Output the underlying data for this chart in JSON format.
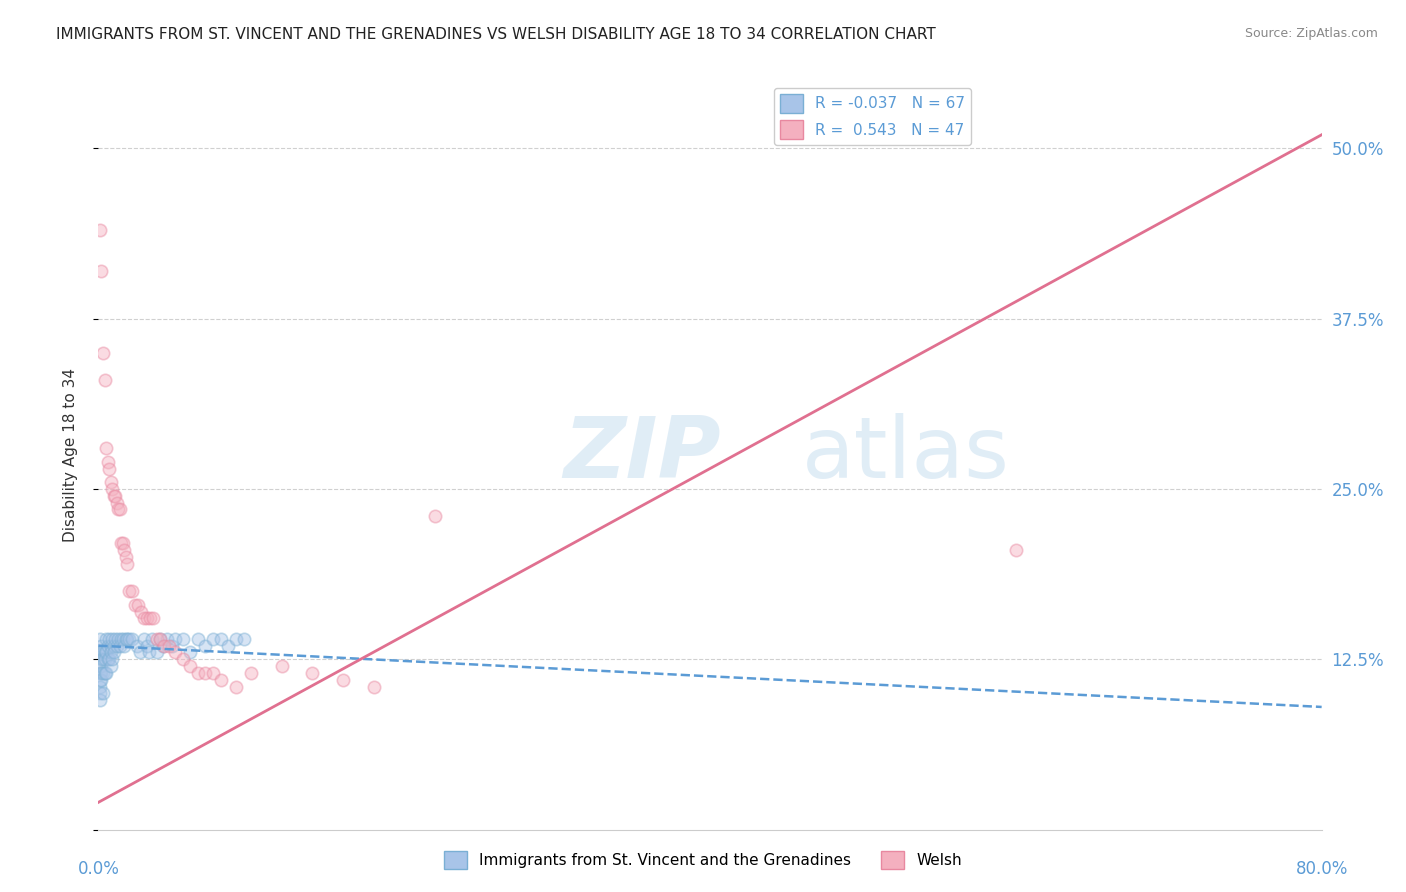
{
  "title": "IMMIGRANTS FROM ST. VINCENT AND THE GRENADINES VS WELSH DISABILITY AGE 18 TO 34 CORRELATION CHART",
  "source": "Source: ZipAtlas.com",
  "ylabel": "Disability Age 18 to 34",
  "ytick_labels": [
    "",
    "12.5%",
    "25.0%",
    "37.5%",
    "50.0%"
  ],
  "ytick_values": [
    0,
    0.125,
    0.25,
    0.375,
    0.5
  ],
  "legend_entry_0": "R = -0.037   N = 67",
  "legend_entry_1": "R =  0.543   N = 47",
  "blue_scatter_x": [
    0.001,
    0.001,
    0.001,
    0.001,
    0.001,
    0.001,
    0.001,
    0.001,
    0.002,
    0.002,
    0.002,
    0.002,
    0.002,
    0.002,
    0.003,
    0.003,
    0.003,
    0.003,
    0.004,
    0.004,
    0.004,
    0.005,
    0.005,
    0.005,
    0.006,
    0.006,
    0.007,
    0.007,
    0.008,
    0.008,
    0.008,
    0.009,
    0.009,
    0.01,
    0.01,
    0.011,
    0.012,
    0.013,
    0.014,
    0.015,
    0.016,
    0.017,
    0.018,
    0.019,
    0.02,
    0.022,
    0.025,
    0.027,
    0.03,
    0.032,
    0.033,
    0.035,
    0.038,
    0.04,
    0.042,
    0.045,
    0.048,
    0.05,
    0.055,
    0.06,
    0.065,
    0.07,
    0.075,
    0.08,
    0.085,
    0.09,
    0.095
  ],
  "blue_scatter_y": [
    0.14,
    0.13,
    0.12,
    0.115,
    0.11,
    0.105,
    0.1,
    0.095,
    0.135,
    0.13,
    0.125,
    0.12,
    0.115,
    0.11,
    0.13,
    0.125,
    0.115,
    0.1,
    0.13,
    0.125,
    0.115,
    0.14,
    0.13,
    0.115,
    0.135,
    0.125,
    0.14,
    0.125,
    0.135,
    0.13,
    0.12,
    0.14,
    0.125,
    0.135,
    0.13,
    0.14,
    0.135,
    0.14,
    0.135,
    0.14,
    0.14,
    0.135,
    0.14,
    0.14,
    0.14,
    0.14,
    0.135,
    0.13,
    0.14,
    0.135,
    0.13,
    0.14,
    0.13,
    0.14,
    0.135,
    0.14,
    0.135,
    0.14,
    0.14,
    0.13,
    0.14,
    0.135,
    0.14,
    0.14,
    0.135,
    0.14,
    0.14
  ],
  "pink_scatter_x": [
    0.001,
    0.002,
    0.003,
    0.004,
    0.005,
    0.006,
    0.007,
    0.008,
    0.009,
    0.01,
    0.011,
    0.012,
    0.013,
    0.014,
    0.015,
    0.016,
    0.017,
    0.018,
    0.019,
    0.02,
    0.022,
    0.024,
    0.026,
    0.028,
    0.03,
    0.032,
    0.034,
    0.036,
    0.038,
    0.04,
    0.043,
    0.046,
    0.05,
    0.055,
    0.06,
    0.065,
    0.07,
    0.075,
    0.08,
    0.09,
    0.1,
    0.12,
    0.14,
    0.16,
    0.18,
    0.22,
    0.6
  ],
  "pink_scatter_y": [
    0.44,
    0.41,
    0.35,
    0.33,
    0.28,
    0.27,
    0.265,
    0.255,
    0.25,
    0.245,
    0.245,
    0.24,
    0.235,
    0.235,
    0.21,
    0.21,
    0.205,
    0.2,
    0.195,
    0.175,
    0.175,
    0.165,
    0.165,
    0.16,
    0.155,
    0.155,
    0.155,
    0.155,
    0.14,
    0.14,
    0.135,
    0.135,
    0.13,
    0.125,
    0.12,
    0.115,
    0.115,
    0.115,
    0.11,
    0.105,
    0.115,
    0.12,
    0.115,
    0.11,
    0.105,
    0.23,
    0.205
  ],
  "blue_line_x": [
    0.0,
    0.8
  ],
  "blue_line_y": [
    0.135,
    0.09
  ],
  "pink_line_x": [
    0.0,
    0.8
  ],
  "pink_line_y": [
    0.02,
    0.51
  ],
  "xlim": [
    0.0,
    0.8
  ],
  "ylim": [
    0.0,
    0.55
  ],
  "watermark_zip": "ZIP",
  "watermark_atlas": "atlas",
  "scatter_alpha": 0.45,
  "scatter_size": 80,
  "title_fontsize": 11,
  "axis_color": "#5b9bd5",
  "grid_color": "#d0d0d0",
  "bg_color": "#ffffff",
  "blue_scatter_color": "#a8c4e8",
  "blue_scatter_edge": "#7aafd4",
  "pink_scatter_color": "#f4b0bf",
  "pink_scatter_edge": "#e888a0",
  "blue_line_color": "#5b9bd5",
  "pink_line_color": "#e07090",
  "bottom_legend_0": "Immigrants from St. Vincent and the Grenadines",
  "bottom_legend_1": "Welsh"
}
